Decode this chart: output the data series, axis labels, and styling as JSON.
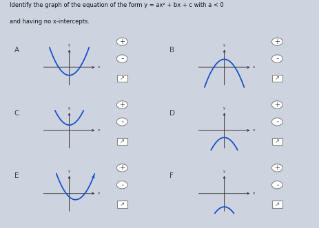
{
  "background_color": "#cdd4df",
  "parabola_color": "#1a4fcc",
  "axis_color": "#333333",
  "title_color": "#111111",
  "label_color": "#444444",
  "title_line1": "Identify the graph of the equation of the form y = ax² + bx + c with a < 0",
  "title_line2": "and having no x-intercepts.",
  "graphs": [
    {
      "label": "A",
      "a": 2.5,
      "vx": 0.0,
      "vy": -0.45,
      "col": 0,
      "row": 0
    },
    {
      "label": "B",
      "a": -2.5,
      "vx": 0.0,
      "vy": 0.45,
      "col": 1,
      "row": 0
    },
    {
      "label": "C",
      "a": 2.5,
      "vx": 0.0,
      "vy": 0.3,
      "col": 0,
      "row": 1
    },
    {
      "label": "D",
      "a": -2.5,
      "vx": 0.0,
      "vy": -0.4,
      "col": 1,
      "row": 1
    },
    {
      "label": "E",
      "a": 2.5,
      "vx": 0.25,
      "vy": -0.35,
      "col": 0,
      "row": 2
    },
    {
      "label": "F",
      "a": -2.5,
      "vx": 0.0,
      "vy": -0.75,
      "col": 1,
      "row": 2
    }
  ]
}
